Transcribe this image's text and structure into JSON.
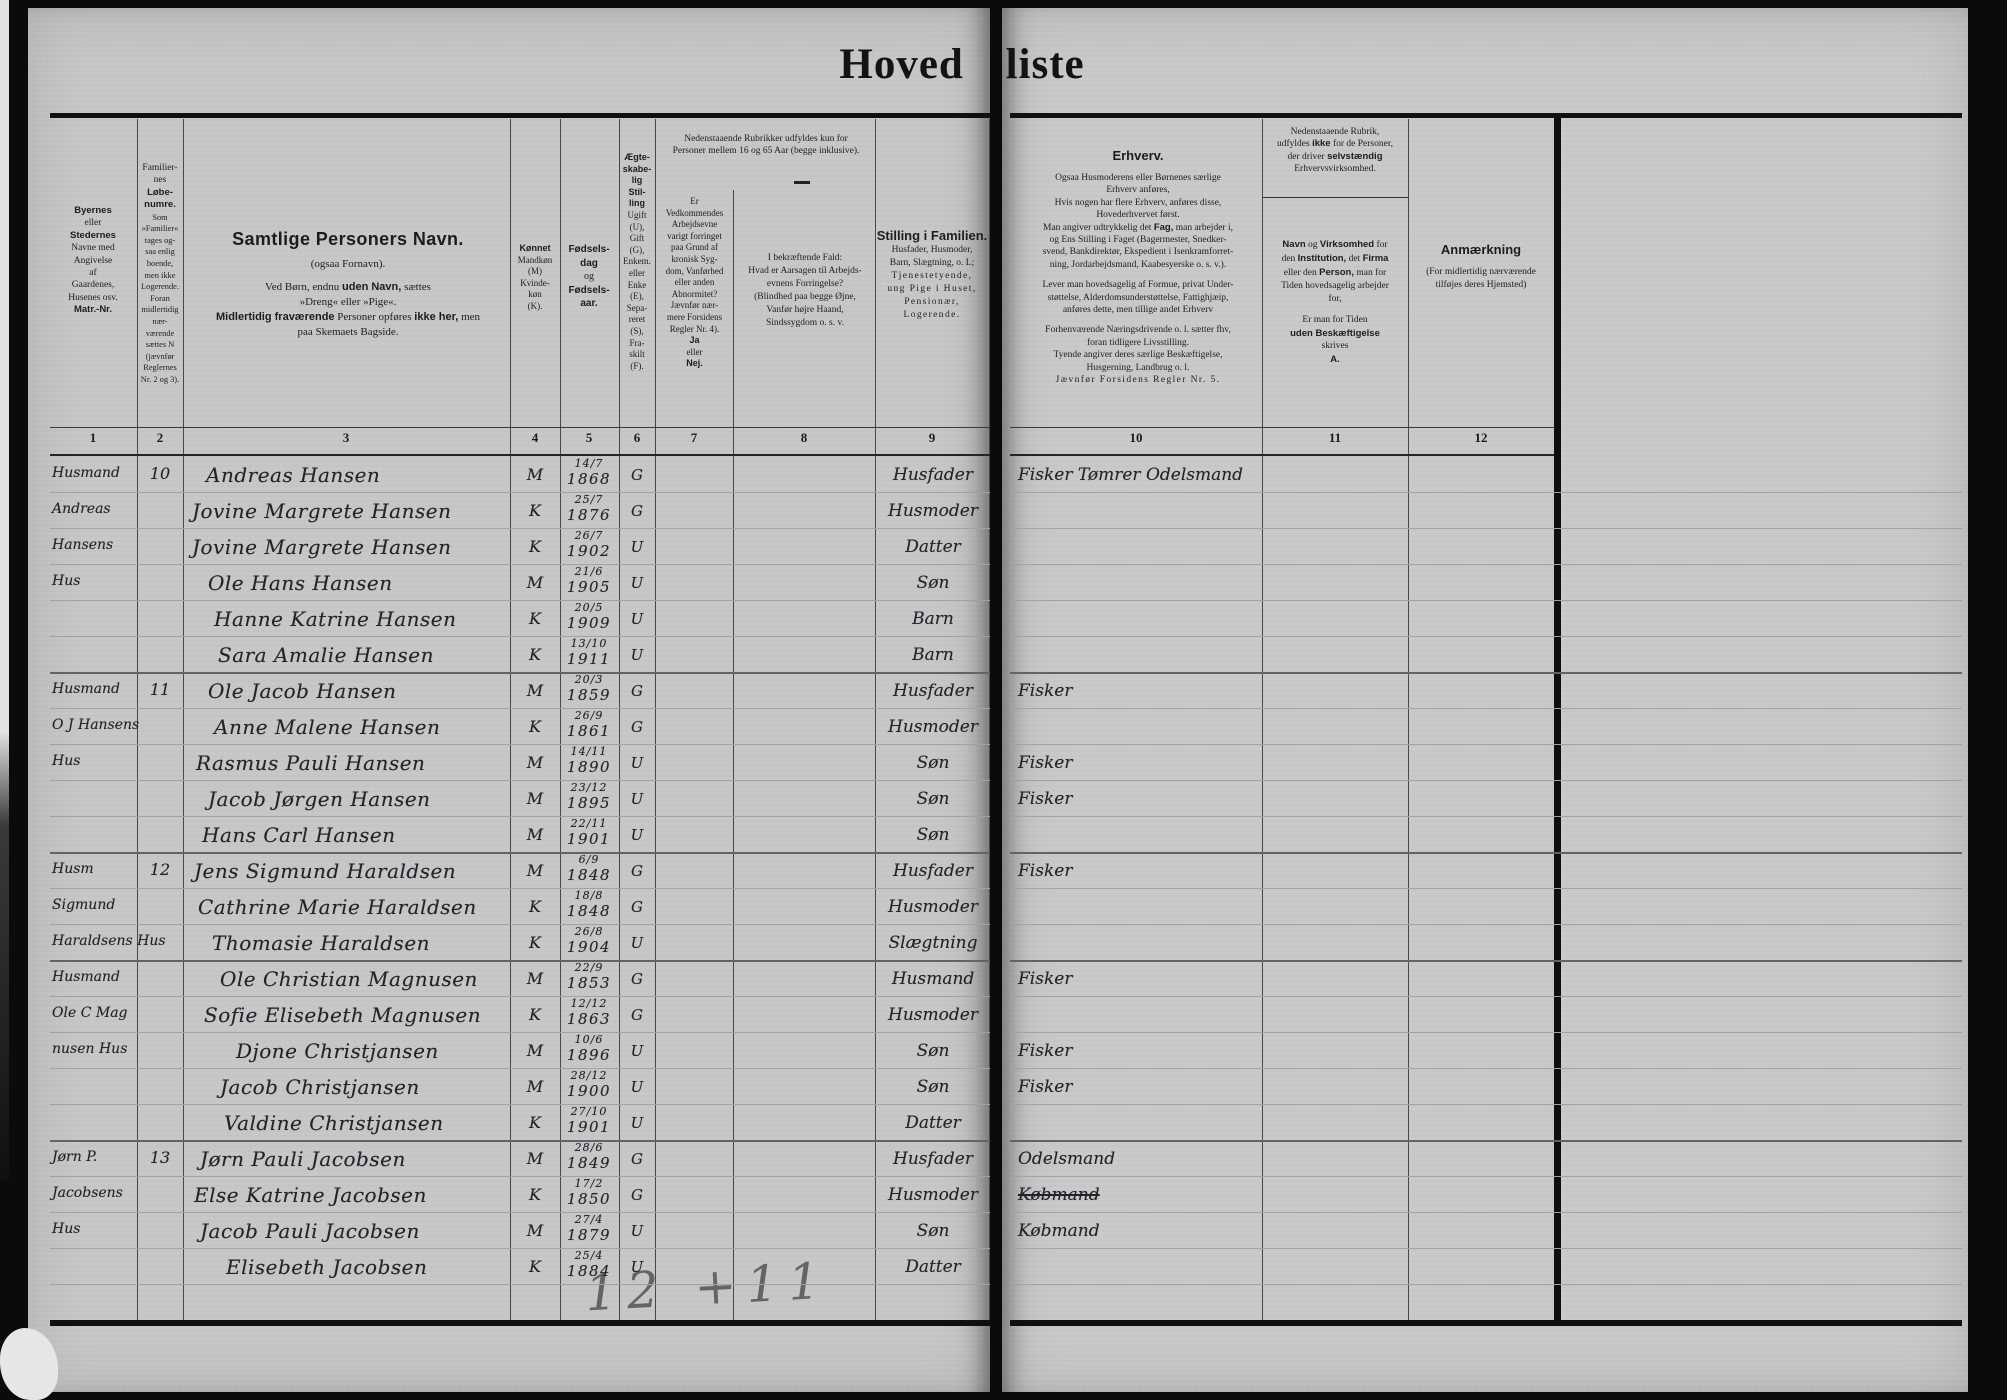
{
  "title": "Hoved liste",
  "pencil_note": "12 +11",
  "colors": {
    "page": "#c7c7c7",
    "ink": "#23232b",
    "print": "#1d1d1d",
    "surround": "#0b0b0b"
  },
  "numbers_left": [
    "1",
    "2",
    "3",
    "4",
    "5",
    "6",
    "7",
    "8",
    "9"
  ],
  "numbers_right": [
    "10",
    "11",
    "12"
  ],
  "headers": {
    "shared_rubric": [
      {
        "t": "Nedenstaaende Rubrikker udfyldes kun for"
      },
      {
        "t": "Personer mellem 16 og 65 Aar (begge inklusive)."
      }
    ],
    "col1": [
      {
        "t": "Byernes",
        "b": 1
      },
      {
        "t": "eller"
      },
      {
        "t": "Stedernes",
        "b": 1
      },
      {
        "t": "Navne med"
      },
      {
        "t": "Angivelse"
      },
      {
        "t": "af"
      },
      {
        "t": "Gaardenes,"
      },
      {
        "t": "Husenes osv."
      },
      {
        "t": "Matr.-Nr.",
        "b": 1
      }
    ],
    "col2": [
      {
        "t": "Familier-"
      },
      {
        "t": "nes"
      },
      {
        "t": "Løbe-",
        "b": 1
      },
      {
        "t": "numre.",
        "b": 1
      },
      {
        "t": "Som",
        "c": "xs"
      },
      {
        "t": "»Familier«",
        "c": "xs"
      },
      {
        "t": "tages og-",
        "c": "xs"
      },
      {
        "t": "saa enlig",
        "c": "xs"
      },
      {
        "t": "boende,",
        "c": "xs"
      },
      {
        "t": "men ikke",
        "c": "xs"
      },
      {
        "t": "Logerende.",
        "c": "xs"
      },
      {
        "t": "Foran",
        "c": "xs"
      },
      {
        "t": "midlertidig",
        "c": "xs"
      },
      {
        "t": "nær-",
        "c": "xs"
      },
      {
        "t": "værende",
        "c": "xs"
      },
      {
        "t": "sættes N",
        "c": "xs"
      },
      {
        "t": "(jævnfør",
        "c": "xs"
      },
      {
        "t": "Reglernes",
        "c": "xs"
      },
      {
        "t": "Nr. 2 og 3).",
        "c": "xs"
      }
    ],
    "col3": [
      {
        "t": "Samtlige Personers Navn.",
        "b": 1,
        "c": "big"
      },
      {
        "t": "(ogsaa Fornavn).",
        "c": "gap"
      },
      {
        "seg": [
          {
            "t": "Ved Børn, endnu "
          },
          {
            "t": "uden Navn,",
            "b": 1
          },
          {
            "t": " sættes"
          }
        ]
      },
      {
        "t": "»Dreng« eller »Pige«."
      },
      {
        "seg": [
          {
            "t": "Midlertidig fraværende",
            "b": 1
          },
          {
            "t": " Personer opføres "
          },
          {
            "t": "ikke her,",
            "b": 1
          },
          {
            "t": " men"
          }
        ]
      },
      {
        "t": "paa Skemaets Bagside."
      }
    ],
    "col4": [
      {
        "t": "Kønnet",
        "b": 1
      },
      {
        "t": "Mandkøn"
      },
      {
        "t": "(M)"
      },
      {
        "t": "Kvinde-"
      },
      {
        "t": "køn"
      },
      {
        "t": "(K)."
      }
    ],
    "col5": [
      {
        "t": "Fødsels-",
        "b": 1
      },
      {
        "t": "dag",
        "b": 1
      },
      {
        "t": "og"
      },
      {
        "t": "Fødsels-",
        "b": 1
      },
      {
        "t": "aar.",
        "b": 1
      }
    ],
    "col6": [
      {
        "t": "Ægte-",
        "b": 1
      },
      {
        "t": "skabe-",
        "b": 1
      },
      {
        "t": "lig",
        "b": 1
      },
      {
        "t": "Stil-",
        "b": 1
      },
      {
        "t": "ling",
        "b": 1
      },
      {
        "t": "Ugift"
      },
      {
        "t": "(U),"
      },
      {
        "t": "Gift"
      },
      {
        "t": "(G),"
      },
      {
        "t": "Enkem."
      },
      {
        "t": "eller"
      },
      {
        "t": "Enke"
      },
      {
        "t": "(E),"
      },
      {
        "t": "Sepa-"
      },
      {
        "t": "reret"
      },
      {
        "t": "(S),"
      },
      {
        "t": "Fra-"
      },
      {
        "t": "skilt"
      },
      {
        "t": "(F)."
      }
    ],
    "col7": [
      {
        "t": "Er"
      },
      {
        "t": "Vedkommendes"
      },
      {
        "t": "Arbejdsevne"
      },
      {
        "t": "varigt forringet"
      },
      {
        "t": "paa Grund af"
      },
      {
        "t": "kronisk Syg-"
      },
      {
        "t": "dom, Vanførhed"
      },
      {
        "t": "eller anden"
      },
      {
        "t": "Abnormitet?"
      },
      {
        "t": "Jævnfør nær-"
      },
      {
        "t": "mere Forsidens"
      },
      {
        "t": "Regler Nr. 4)."
      },
      {
        "t": "Ja",
        "b": 1
      },
      {
        "t": "eller"
      },
      {
        "t": "Nej.",
        "b": 1
      }
    ],
    "col8": [
      {
        "t": "I bekræftende Fald:"
      },
      {
        "t": "Hvad er Aarsagen til Arbejds-"
      },
      {
        "t": "evnens Forringelse?"
      },
      {
        "t": "(Blindhed paa begge Øjne,"
      },
      {
        "t": "Vanfør højre Haand,"
      },
      {
        "t": "Sindssygdom o. s. v."
      }
    ],
    "col9": [
      {
        "t": "Stilling i Familien.",
        "b": 1,
        "c": "md"
      },
      {
        "t": "Husfader, Husmoder,"
      },
      {
        "t": "Barn, Slægtning, o. L;"
      },
      {
        "t": "Tjenestetyende,",
        "c": "sp"
      },
      {
        "t": "ung Pige i Huset,",
        "c": "sp"
      },
      {
        "t": "Pensionær,",
        "c": "sp"
      },
      {
        "t": "Logerende.",
        "c": "sp"
      }
    ],
    "col10": [
      {
        "t": "Erhverv.",
        "b": 1,
        "c": "md gap"
      },
      {
        "t": "Ogsaa Husmoderens eller Børnenes særlige"
      },
      {
        "t": "Erhverv anføres,"
      },
      {
        "t": "Hvis nogen har flere Erhverv, anføres disse,"
      },
      {
        "t": "Hovederhvervet først."
      },
      {
        "seg": [
          {
            "t": "Man angiver udtrykkelig det "
          },
          {
            "t": "Fag,",
            "b": 1
          },
          {
            "t": " man arbejder i,"
          }
        ]
      },
      {
        "t": "og Ens Stilling i Faget (Bagermester, Snedker-"
      },
      {
        "t": "svend, Bankdirektør, Ekspedient i Isenkramforret-"
      },
      {
        "t": "ning, Jordarbejdsmand, Kaabesyerske o. s. v.).",
        "c": "gap"
      },
      {
        "t": "Lever man hovedsagelig af Formue, privat Under-"
      },
      {
        "t": "støttelse, Alderdomsunderstøttelse, Fattighjæip,"
      },
      {
        "t": "anføres dette, men tillige andet Erhverv",
        "c": "gap"
      },
      {
        "t": "Forhenværende Næringsdrivende o. l. sætter fhv,"
      },
      {
        "t": "foran tidligere Livsstilling."
      },
      {
        "t": "Tyende angiver deres særlige Beskæftigelse,"
      },
      {
        "t": "Husgerning, Landbrug o. l."
      },
      {
        "t": "Jævnfør Forsidens Regler Nr. 5.",
        "c": "sp"
      }
    ],
    "col11_rubric": [
      {
        "t": "Nedenstaaende Rubrik,"
      },
      {
        "seg": [
          {
            "t": "udfyldes "
          },
          {
            "t": "ikke",
            "b": 1
          },
          {
            "t": " for de Personer,"
          }
        ]
      },
      {
        "seg": [
          {
            "t": "der driver "
          },
          {
            "t": "selvstændig",
            "b": 1
          }
        ]
      },
      {
        "t": "Erhvervsvirksomhed."
      }
    ],
    "col11_main": [
      {
        "seg": [
          {
            "t": "Navn",
            "b": 1
          },
          {
            "t": " og "
          },
          {
            "t": "Virksomhed",
            "b": 1
          },
          {
            "t": " for"
          }
        ]
      },
      {
        "seg": [
          {
            "t": "den "
          },
          {
            "t": "Institution,",
            "b": 1
          },
          {
            "t": " det "
          },
          {
            "t": "Firma",
            "b": 1
          }
        ]
      },
      {
        "seg": [
          {
            "t": "eller den "
          },
          {
            "t": "Person,",
            "b": 1
          },
          {
            "t": " man for"
          }
        ]
      },
      {
        "t": "Tiden hovedsagelig arbejder"
      },
      {
        "t": "for,",
        "c": "gap"
      },
      {
        "t": "Er man for Tiden"
      },
      {
        "t": "uden Beskæftigelse",
        "b": 1
      },
      {
        "t": "skrives"
      },
      {
        "t": "A.",
        "b": 1
      }
    ],
    "col12": [
      {
        "t": "Anmærkning",
        "b": 1,
        "c": "md gap"
      },
      {
        "t": "(For midlertidig nærværende"
      },
      {
        "t": "tilføjes deres Hjemsted)"
      }
    ]
  },
  "rows": [
    {
      "place": "Husmand",
      "no": "10",
      "name": "Andreas Hansen",
      "ind": 14,
      "sex": "M",
      "bd": "14/7",
      "by": "1868",
      "ms": "G",
      "fam": "Husfader",
      "occ": "Fisker Tømrer Odelsmand"
    },
    {
      "place": "Andreas",
      "name": "Jovine Margrete Hansen",
      "ind": 0,
      "sex": "K",
      "bd": "25/7",
      "by": "1876",
      "ms": "G",
      "fam": "Husmoder"
    },
    {
      "place": "Hansens",
      "name": "Jovine Margrete Hansen",
      "ind": 0,
      "sex": "K",
      "bd": "26/7",
      "by": "1902",
      "ms": "U",
      "fam": "Datter"
    },
    {
      "place": "Hus",
      "name": "Ole Hans Hansen",
      "ind": 16,
      "sex": "M",
      "bd": "21/6",
      "by": "1905",
      "ms": "U",
      "fam": "Søn"
    },
    {
      "name": "Hanne Katrine Hansen",
      "ind": 22,
      "sex": "K",
      "bd": "20/5",
      "by": "1909",
      "ms": "U",
      "fam": "Barn"
    },
    {
      "name": "Sara Amalie Hansen",
      "ind": 26,
      "sex": "K",
      "bd": "13/10",
      "by": "1911",
      "ms": "U",
      "fam": "Barn",
      "ge": 1
    },
    {
      "place": "Husmand",
      "no": "11",
      "name": "Ole Jacob Hansen",
      "ind": 16,
      "sex": "M",
      "bd": "20/3",
      "by": "1859",
      "ms": "G",
      "fam": "Husfader",
      "occ": "Fisker"
    },
    {
      "place": "O J Hansens",
      "name": "Anne Malene Hansen",
      "ind": 22,
      "sex": "K",
      "bd": "26/9",
      "by": "1861",
      "ms": "G",
      "fam": "Husmoder"
    },
    {
      "place": "Hus",
      "name": "Rasmus Pauli Hansen",
      "ind": 4,
      "sex": "M",
      "bd": "14/11",
      "by": "1890",
      "ms": "U",
      "fam": "Søn",
      "occ": "Fisker"
    },
    {
      "name": "Jacob Jørgen Hansen",
      "ind": 16,
      "sex": "M",
      "bd": "23/12",
      "by": "1895",
      "ms": "U",
      "fam": "Søn",
      "occ": "Fisker"
    },
    {
      "name": "Hans Carl Hansen",
      "ind": 10,
      "sex": "M",
      "bd": "22/11",
      "by": "1901",
      "ms": "U",
      "fam": "Søn",
      "ge": 1
    },
    {
      "place": "Husm",
      "no": "12",
      "name": "Jens Sigmund Haraldsen",
      "ind": 2,
      "sex": "M",
      "bd": "6/9",
      "by": "1848",
      "ms": "G",
      "fam": "Husfader",
      "occ": "Fisker"
    },
    {
      "place": "Sigmund",
      "name": "Cathrine Marie Haraldsen",
      "ind": 6,
      "sex": "K",
      "bd": "18/8",
      "by": "1848",
      "ms": "G",
      "fam": "Husmoder"
    },
    {
      "place": "Haraldsens Hus",
      "name": "Thomasie Haraldsen",
      "ind": 20,
      "sex": "K",
      "bd": "26/8",
      "by": "1904",
      "ms": "U",
      "fam": "Slægtning",
      "ge": 1
    },
    {
      "place": "Husmand",
      "name": "Ole Christian Magnusen",
      "ind": 28,
      "sex": "M",
      "bd": "22/9",
      "by": "1853",
      "ms": "G",
      "fam": "Husmand",
      "occ": "Fisker"
    },
    {
      "place": "Ole C Mag",
      "name": "Sofie Elisebeth Magnusen",
      "ind": 12,
      "sex": "K",
      "bd": "12/12",
      "by": "1863",
      "ms": "G",
      "fam": "Husmoder"
    },
    {
      "place": "nusen Hus",
      "name": "Djone Christjansen",
      "ind": 44,
      "sex": "M",
      "bd": "10/6",
      "by": "1896",
      "ms": "U",
      "fam": "Søn",
      "occ": "Fisker"
    },
    {
      "name": "Jacob Christjansen",
      "ind": 28,
      "sex": "M",
      "bd": "28/12",
      "by": "1900",
      "ms": "U",
      "fam": "Søn",
      "occ": "Fisker"
    },
    {
      "name": "Valdine Christjansen",
      "ind": 32,
      "sex": "K",
      "bd": "27/10",
      "by": "1901",
      "ms": "U",
      "fam": "Datter",
      "ge": 1
    },
    {
      "place": "Jørn P.",
      "no": "13",
      "name": "Jørn Pauli Jacobsen",
      "ind": 8,
      "sex": "M",
      "bd": "28/6",
      "by": "1849",
      "ms": "G",
      "fam": "Husfader",
      "occ": "Odelsmand"
    },
    {
      "place": "Jacobsens",
      "name": "Else Katrine Jacobsen",
      "ind": 2,
      "sex": "K",
      "bd": "17/2",
      "by": "1850",
      "ms": "G",
      "fam": "Husmoder",
      "occ": "Købmand",
      "struck": 1
    },
    {
      "place": "Hus",
      "name": "Jacob Pauli Jacobsen",
      "ind": 8,
      "sex": "M",
      "bd": "27/4",
      "by": "1879",
      "ms": "U",
      "fam": "Søn",
      "occ": "Købmand"
    },
    {
      "name": "Elisebeth Jacobsen",
      "ind": 34,
      "sex": "K",
      "bd": "25/4",
      "by": "1884",
      "ms": "U",
      "fam": "Datter"
    },
    {}
  ]
}
